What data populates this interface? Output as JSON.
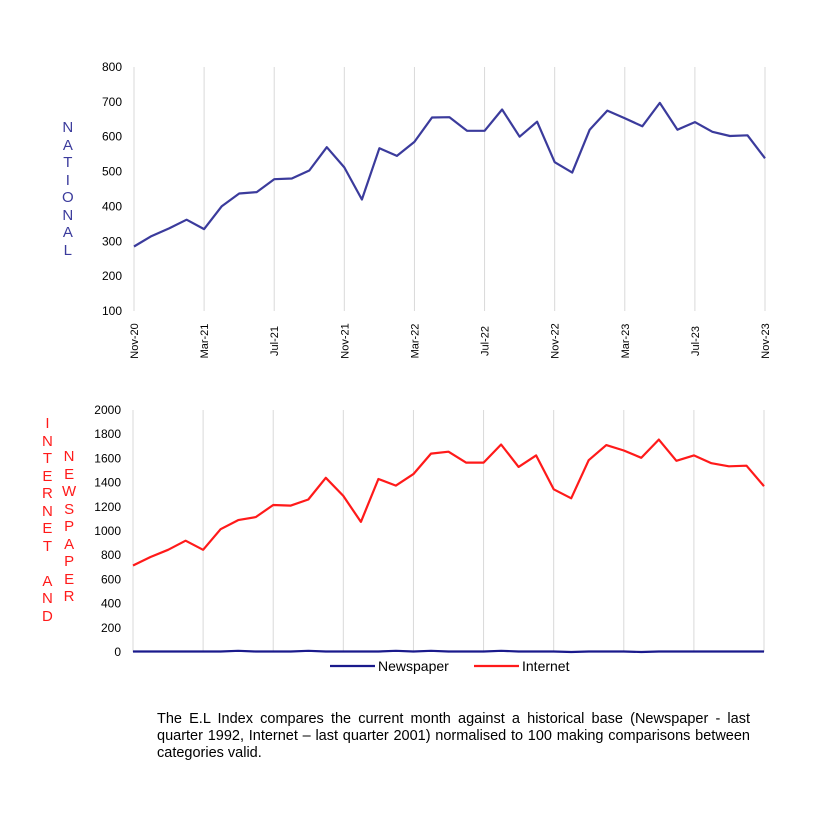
{
  "chart_data": [
    {
      "type": "line",
      "title": "",
      "ylabel": "NATIONAL",
      "ylim": [
        100,
        800
      ],
      "yticks": [
        "100",
        "200",
        "300",
        "400",
        "500",
        "600",
        "700",
        "800"
      ],
      "xtick_labels": [
        "Nov-20",
        "Mar-21",
        "Jul-21",
        "Nov-21",
        "Mar-22",
        "Jul-22",
        "Nov-22",
        "Mar-23",
        "Jul-23",
        "Nov-23"
      ],
      "x_months": 37,
      "grid": "vertical every 4 months",
      "series": [
        {
          "name": "National",
          "color": "#3b3b9c",
          "values": [
            285,
            315,
            337,
            362,
            335,
            400,
            437,
            441,
            478,
            480,
            503,
            570,
            512,
            420,
            567,
            545,
            585,
            655,
            656,
            617,
            617,
            678,
            600,
            643,
            527,
            497,
            620,
            675,
            653,
            630,
            697,
            620,
            642,
            614,
            602,
            604,
            538
          ]
        }
      ]
    },
    {
      "type": "line",
      "title": "",
      "ylabel_left": "INTERNET  AND",
      "ylabel_right": "NEWSPAPER",
      "ylim": [
        0,
        2000
      ],
      "yticks": [
        "0",
        "200",
        "400",
        "600",
        "800",
        "1000",
        "1200",
        "1400",
        "1600",
        "1800",
        "2000"
      ],
      "x_months": 37,
      "legend": "bottom",
      "series": [
        {
          "name": "Newspaper",
          "color": "#1a1a8c",
          "values": [
            4,
            4,
            4,
            4,
            4,
            4,
            10,
            4,
            4,
            4,
            10,
            4,
            4,
            4,
            4,
            10,
            4,
            10,
            4,
            4,
            4,
            10,
            4,
            4,
            4,
            0,
            4,
            4,
            4,
            0,
            4,
            4,
            4,
            4,
            4,
            4,
            4
          ]
        },
        {
          "name": "Internet",
          "color": "#ff1a1a",
          "values": [
            715,
            785,
            845,
            920,
            845,
            1015,
            1090,
            1115,
            1215,
            1210,
            1260,
            1440,
            1290,
            1075,
            1430,
            1375,
            1470,
            1640,
            1655,
            1565,
            1565,
            1715,
            1530,
            1625,
            1345,
            1270,
            1585,
            1710,
            1665,
            1605,
            1755,
            1580,
            1625,
            1560,
            1535,
            1540,
            1370
          ]
        }
      ]
    }
  ],
  "labels": {
    "national": [
      "N",
      "A",
      "T",
      "I",
      "O",
      "N",
      "A",
      "L"
    ],
    "internet_and": [
      "I",
      "N",
      "T",
      "E",
      "R",
      "N",
      "E",
      "T",
      "",
      "A",
      "N",
      "D"
    ],
    "newspaper": [
      "N",
      "E",
      "W",
      "S",
      "P",
      "A",
      "P",
      "E",
      "R"
    ]
  },
  "note": "The E.L Index compares the current month against a historical base (Newspaper - last quarter 1992, Internet – last quarter 2001) normalised to 100 making comparisons between categories valid."
}
